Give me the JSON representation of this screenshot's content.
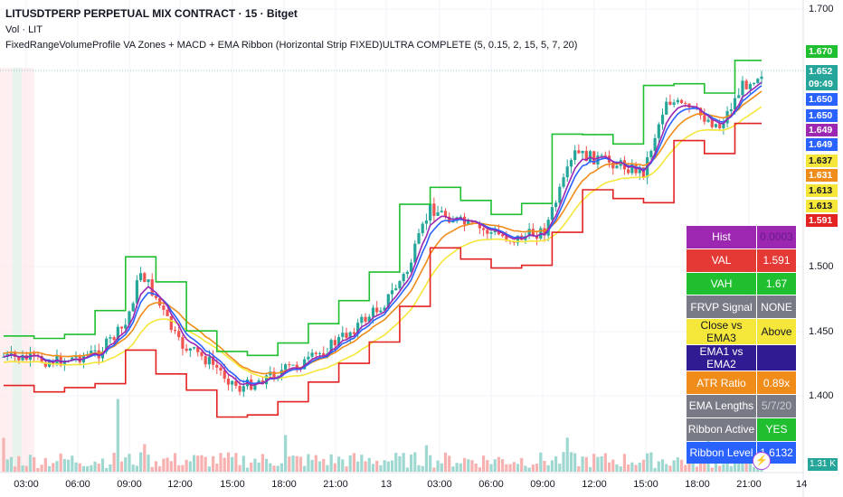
{
  "header": {
    "title": "LITUSDTPERP PERPETUAL MIX CONTRACT · 15 · Bitget",
    "volume": "Vol · LIT",
    "indicator": "FixedRangeVolumeProfile VA Zones + MACD + EMA Ribbon (Horizontal Strip FIXED)ULTRA COMPLETE (5, 0.15, 2, 15, 5, 7, 20)"
  },
  "price_axis": {
    "labels": [
      "1.700",
      "1.500",
      "1.450",
      "1.400"
    ],
    "tags": [
      {
        "text": "1.670",
        "color": "#1fbf2f"
      },
      {
        "text": "1.652",
        "color": "#26a69a"
      },
      {
        "text": "09:49",
        "color": "#26a69a"
      },
      {
        "text": "1.650",
        "color": "#2962ff"
      },
      {
        "text": "1.650",
        "color": "#2962ff"
      },
      {
        "text": "1.649",
        "color": "#9c27b0"
      },
      {
        "text": "1.649",
        "color": "#2962ff"
      },
      {
        "text": "1.637",
        "color": "#f5e63a"
      },
      {
        "text": "1.631",
        "color": "#ef8c1a"
      },
      {
        "text": "1.613",
        "color": "#f5e63a"
      },
      {
        "text": "1.613",
        "color": "#f5e63a"
      },
      {
        "text": "1.591",
        "color": "#e32222"
      }
    ]
  },
  "time_axis": [
    "03:00",
    "06:00",
    "09:00",
    "12:00",
    "15:00",
    "18:00",
    "21:00",
    "13",
    "03:00",
    "06:00",
    "09:00",
    "12:00",
    "15:00",
    "18:00",
    "21:00",
    "14"
  ],
  "info_table": [
    {
      "key": "Hist",
      "value": "0.0003",
      "key_bg": "#9c27b0",
      "value_bg": "#9c27b0",
      "value_color": "#6a1b8a"
    },
    {
      "key": "VAL",
      "value": "1.591",
      "key_bg": "#e53935",
      "value_bg": "#e53935",
      "value_color": "#ffffff"
    },
    {
      "key": "VAH",
      "value": "1.67",
      "key_bg": "#1fbf2f",
      "value_bg": "#1fbf2f",
      "value_color": "#ffffff"
    },
    {
      "key": "FRVP Signal",
      "value": "NONE",
      "key_bg": "#787b86",
      "value_bg": "#787b86",
      "value_color": "#ffffff"
    },
    {
      "key": "Close vs EMA3",
      "value": "Above",
      "key_bg": "#f5e63a",
      "value_bg": "#f5e63a",
      "value_color": "#131722",
      "key_color": "#131722"
    },
    {
      "key": "EMA1 vs EMA2",
      "value": "",
      "key_bg": "#311b92",
      "value_bg": "#311b92",
      "value_color": "#ffffff"
    },
    {
      "key": "ATR Ratio",
      "value": "0.89x",
      "key_bg": "#ef8c1a",
      "value_bg": "#ef8c1a",
      "value_color": "#ffffff"
    },
    {
      "key": "EMA Lengths",
      "value": "5/7/20",
      "key_bg": "#787b86",
      "value_bg": "#787b86",
      "value_color": "#c9cbd1"
    },
    {
      "key": "Ribbon Active",
      "value": "YES",
      "key_bg": "#787b86",
      "value_bg": "#1fbf2f",
      "value_color": "#ffffff"
    },
    {
      "key": "Ribbon Level",
      "value": "1.6132",
      "key_bg": "#2962ff",
      "value_bg": "#2962ff",
      "value_color": "#ffffff"
    }
  ],
  "volume_badge": "1.31 K",
  "colors": {
    "up": "#26a69a",
    "down": "#ef5350",
    "vah": "#1fbf2f",
    "val": "#e32222",
    "ema1": "#9c27b0",
    "ema2": "#2962ff",
    "ema3": "#f5e63a",
    "poc": "#ef8c1a"
  }
}
